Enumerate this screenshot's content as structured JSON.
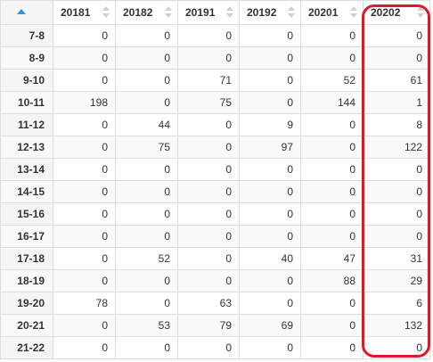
{
  "table": {
    "columns": [
      "20181",
      "20182",
      "20191",
      "20192",
      "20201",
      "20202"
    ],
    "rows": [
      {
        "label": "7-8",
        "values": [
          "0",
          "0",
          "0",
          "0",
          "0",
          "0"
        ]
      },
      {
        "label": "8-9",
        "values": [
          "0",
          "0",
          "0",
          "0",
          "0",
          "0"
        ]
      },
      {
        "label": "9-10",
        "values": [
          "0",
          "0",
          "71",
          "0",
          "52",
          "61"
        ]
      },
      {
        "label": "10-11",
        "values": [
          "198",
          "0",
          "75",
          "0",
          "144",
          "1"
        ]
      },
      {
        "label": "11-12",
        "values": [
          "0",
          "44",
          "0",
          "9",
          "0",
          "8"
        ]
      },
      {
        "label": "12-13",
        "values": [
          "0",
          "75",
          "0",
          "97",
          "0",
          "122"
        ]
      },
      {
        "label": "13-14",
        "values": [
          "0",
          "0",
          "0",
          "0",
          "0",
          "0"
        ]
      },
      {
        "label": "14-15",
        "values": [
          "0",
          "0",
          "0",
          "0",
          "0",
          "0"
        ]
      },
      {
        "label": "15-16",
        "values": [
          "0",
          "0",
          "0",
          "0",
          "0",
          "0"
        ]
      },
      {
        "label": "16-17",
        "values": [
          "0",
          "0",
          "0",
          "0",
          "0",
          "0"
        ]
      },
      {
        "label": "17-18",
        "values": [
          "0",
          "52",
          "0",
          "40",
          "47",
          "31"
        ]
      },
      {
        "label": "18-19",
        "values": [
          "0",
          "0",
          "0",
          "0",
          "88",
          "29"
        ]
      },
      {
        "label": "19-20",
        "values": [
          "78",
          "0",
          "63",
          "0",
          "0",
          "6"
        ]
      },
      {
        "label": "20-21",
        "values": [
          "0",
          "53",
          "79",
          "69",
          "0",
          "132"
        ]
      },
      {
        "label": "21-22",
        "values": [
          "0",
          "0",
          "0",
          "0",
          "0",
          "0"
        ]
      }
    ],
    "sort_icon": "sort-ascending-icon",
    "column_sort_icon": "sort-both-icon"
  },
  "highlight": {
    "column": "20202",
    "color": "#e0162b"
  },
  "colors": {
    "sort_active": "#3a8fd6",
    "border": "#dddddd",
    "row_header_bg": "#f5f5f5"
  }
}
